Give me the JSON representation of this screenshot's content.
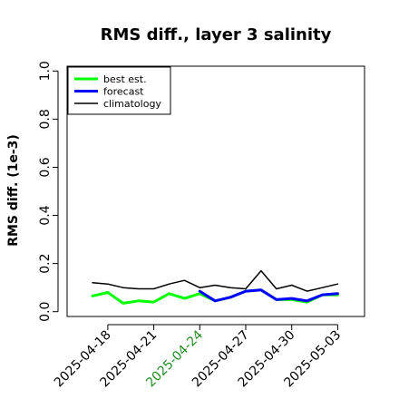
{
  "chart_data": {
    "type": "line",
    "title": "RMS diff., layer 3 salinity",
    "xlabel": "",
    "ylabel": "RMS diff. (1e-3)",
    "ylim": [
      -0.02,
      1.02
    ],
    "yticks": [
      0.0,
      0.2,
      0.4,
      0.6,
      0.8,
      1.0
    ],
    "ytick_labels": [
      "0.0",
      "0.2",
      "0.4",
      "0.6",
      "0.8",
      "1.0"
    ],
    "x": [
      "2025-04-17",
      "2025-04-18",
      "2025-04-19",
      "2025-04-20",
      "2025-04-21",
      "2025-04-22",
      "2025-04-23",
      "2025-04-24",
      "2025-04-25",
      "2025-04-26",
      "2025-04-27",
      "2025-04-28",
      "2025-04-29",
      "2025-04-30",
      "2025-05-01",
      "2025-05-02",
      "2025-05-03"
    ],
    "xtick_labels": [
      "2025-04-18",
      "2025-04-21",
      "2025-04-24",
      "2025-04-27",
      "2025-04-30",
      "2025-05-03"
    ],
    "highlight_tick": "2025-04-24",
    "highlight_color": "#228B22",
    "grid": false,
    "legend_position": "top-left",
    "series": [
      {
        "name": "best est.",
        "color": "#00ff00",
        "width": 3,
        "values": [
          0.065,
          0.08,
          0.035,
          0.045,
          0.04,
          0.075,
          0.055,
          0.075,
          0.045,
          0.06,
          0.085,
          0.09,
          0.05,
          0.05,
          0.04,
          0.07,
          0.07
        ]
      },
      {
        "name": "forecast",
        "color": "#0000ff",
        "width": 3,
        "values": [
          null,
          null,
          null,
          null,
          null,
          null,
          null,
          0.085,
          0.045,
          0.06,
          0.085,
          0.09,
          0.05,
          0.055,
          0.045,
          0.07,
          0.075
        ]
      },
      {
        "name": "climatology",
        "color": "#000000",
        "width": 1.5,
        "values": [
          0.12,
          0.115,
          0.1,
          0.095,
          0.095,
          0.115,
          0.13,
          0.1,
          0.11,
          0.1,
          0.095,
          0.17,
          0.095,
          0.11,
          0.085,
          0.1,
          0.115
        ]
      }
    ]
  }
}
